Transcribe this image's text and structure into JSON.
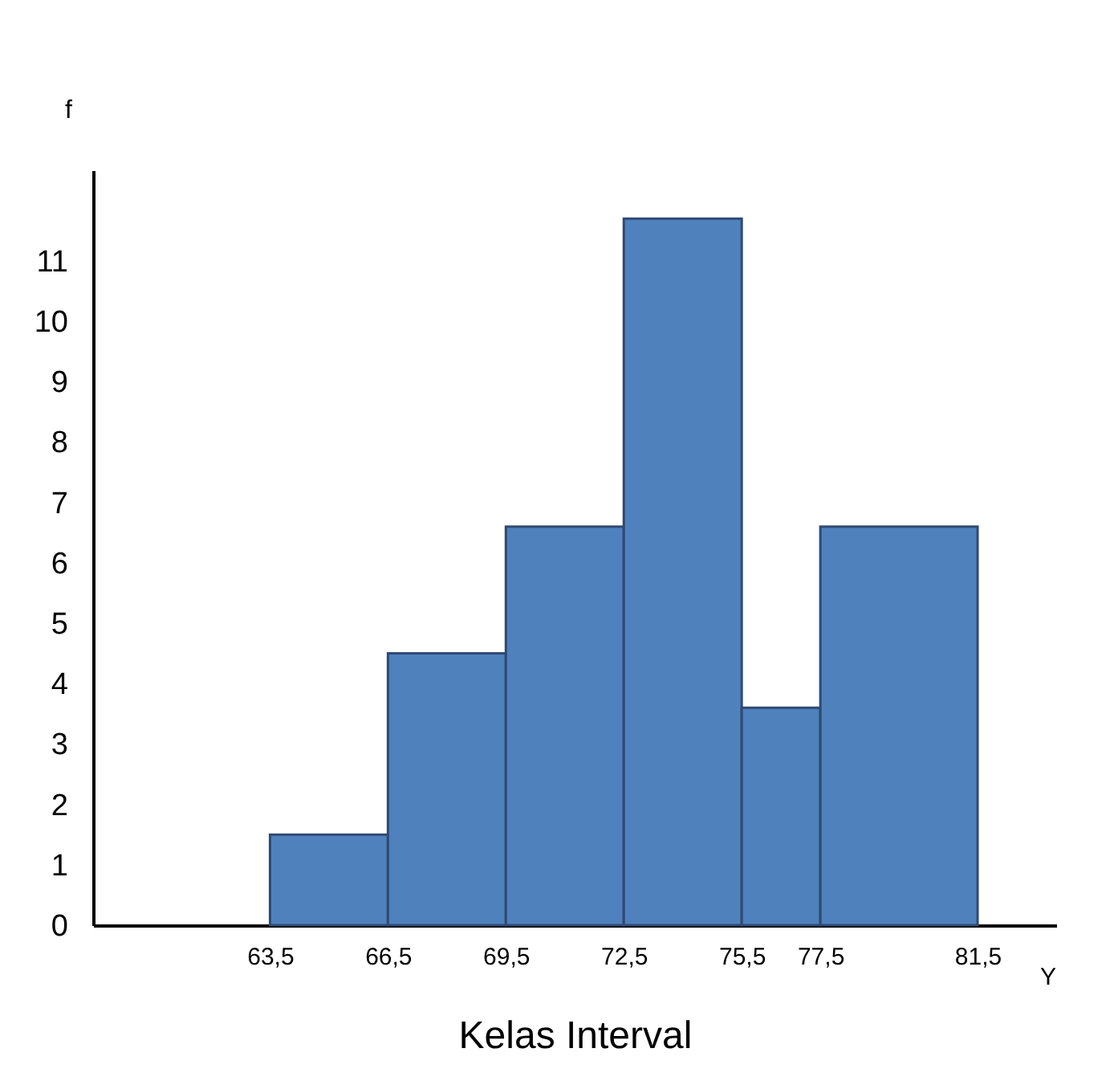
{
  "chart_data": {
    "type": "histogram",
    "ylabel": "f",
    "xlabel": "Kelas Interval",
    "annotations": [
      "Y"
    ],
    "bins": [
      63.5,
      66.5,
      69.5,
      72.5,
      75.5,
      77.5,
      81.5
    ],
    "values": [
      1.5,
      4.5,
      6.6,
      11.7,
      3.6,
      6.6
    ],
    "color": "#4f81bd",
    "xlim": [
      59,
      83.5
    ],
    "xticks": [
      {
        "value": 63.5,
        "label": "63,5"
      },
      {
        "value": 66.5,
        "label": "66,5"
      },
      {
        "value": 69.5,
        "label": "69,5"
      },
      {
        "value": 72.5,
        "label": "72,5"
      },
      {
        "value": 75.5,
        "label": "75,5"
      },
      {
        "value": 77.5,
        "label": "77,5"
      },
      {
        "value": 81.5,
        "label": "81,5"
      }
    ],
    "ylim": [
      0,
      12.5
    ],
    "yticks": [
      0,
      1,
      2,
      3,
      4,
      5,
      6,
      7,
      8,
      9,
      10,
      11
    ],
    "grid": false
  }
}
